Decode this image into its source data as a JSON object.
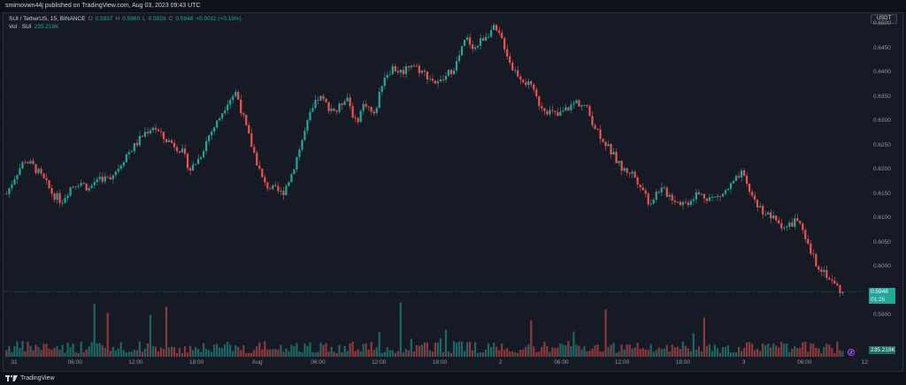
{
  "publish_note": "smirnovwn44j published on TradingView.com, Aug 03, 2023 09:43 UTC",
  "legend": {
    "symbol": "SUI / TetherUS, 15, BINANCE",
    "open_label": "O",
    "open": "0.5937",
    "high_label": "H",
    "high": "0.5960",
    "low_label": "L",
    "low": "0.5929",
    "close_label": "C",
    "close": "0.5948",
    "change": "+0.0011 (+0.19%)",
    "vol_label": "Vol · SUI",
    "vol_value": "235.218K"
  },
  "currency": "USDT",
  "price_ticks": [
    "0.6500",
    "0.6450",
    "0.6400",
    "0.6350",
    "0.6300",
    "0.6250",
    "0.6200",
    "0.6150",
    "0.6100",
    "0.6050",
    "0.6000",
    "0.5900"
  ],
  "last_price_badge": "0.5948",
  "countdown_badge": "01:25",
  "volume_badge": "235.218K",
  "time_labels": [
    "31",
    "06:00",
    "12:00",
    "18:00",
    "Aug",
    "06:00",
    "12:00",
    "18:00",
    "2",
    "06:00",
    "12:00",
    "18:00",
    "3",
    "06:00",
    "12:"
  ],
  "footer_brand": "TradingView",
  "colors": {
    "up": "#26a69a",
    "down": "#ef5350",
    "background": "#161a25",
    "grid": "#1f2330"
  },
  "chart_data": {
    "type": "candlestick",
    "symbol": "SUI/USDT",
    "interval": "15",
    "y_range": [
      0.588,
      0.652
    ],
    "x_labels": [
      "31",
      "06:00",
      "12:00",
      "18:00",
      "Aug",
      "06:00",
      "12:00",
      "18:00",
      "2",
      "06:00",
      "12:00",
      "18:00",
      "3",
      "06:00",
      "12:"
    ],
    "close_path": [
      0.615,
      0.619,
      0.622,
      0.6205,
      0.618,
      0.615,
      0.6135,
      0.6165,
      0.6175,
      0.616,
      0.6185,
      0.618,
      0.62,
      0.623,
      0.625,
      0.6275,
      0.629,
      0.6265,
      0.6255,
      0.624,
      0.62,
      0.6225,
      0.627,
      0.63,
      0.634,
      0.636,
      0.629,
      0.623,
      0.617,
      0.616,
      0.615,
      0.619,
      0.625,
      0.631,
      0.635,
      0.633,
      0.632,
      0.6355,
      0.6295,
      0.634,
      0.631,
      0.639,
      0.641,
      0.64,
      0.642,
      0.6405,
      0.639,
      0.6375,
      0.6395,
      0.642,
      0.647,
      0.645,
      0.6475,
      0.649,
      0.6465,
      0.641,
      0.639,
      0.637,
      0.6335,
      0.632,
      0.631,
      0.6325,
      0.634,
      0.633,
      0.629,
      0.626,
      0.623,
      0.62,
      0.6195,
      0.617,
      0.613,
      0.616,
      0.615,
      0.6135,
      0.613,
      0.615,
      0.6145,
      0.614,
      0.615,
      0.617,
      0.619,
      0.615,
      0.612,
      0.6105,
      0.609,
      0.608,
      0.61,
      0.605,
      0.601,
      0.599,
      0.5965,
      0.5948
    ],
    "last": 0.5948
  }
}
